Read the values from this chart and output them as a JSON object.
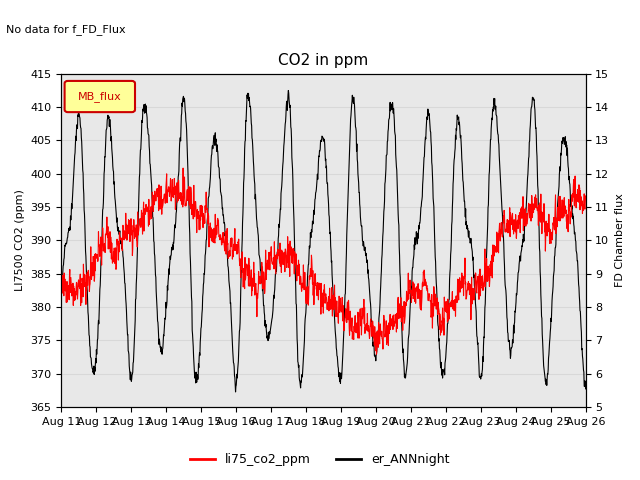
{
  "title": "CO2 in ppm",
  "suptitle": "No data for f_FD_Flux",
  "ylabel_left": "LI7500 CO2 (ppm)",
  "ylabel_right": "FD Chamber flux",
  "ylim_left": [
    365,
    415
  ],
  "ylim_right": [
    5.0,
    15.0
  ],
  "yticks_left": [
    365,
    370,
    375,
    380,
    385,
    390,
    395,
    400,
    405,
    410,
    415
  ],
  "yticks_right": [
    5.0,
    6.0,
    7.0,
    8.0,
    9.0,
    10.0,
    11.0,
    12.0,
    13.0,
    14.0,
    15.0
  ],
  "xtick_labels": [
    "Aug 11",
    "Aug 12",
    "Aug 13",
    "Aug 14",
    "Aug 15",
    "Aug 16",
    "Aug 17",
    "Aug 18",
    "Aug 19",
    "Aug 20",
    "Aug 21",
    "Aug 22",
    "Aug 23",
    "Aug 24",
    "Aug 25",
    "Aug 26"
  ],
  "legend_entries": [
    "li75_co2_ppm",
    "er_ANNnight"
  ],
  "legend_colors": [
    "red",
    "black"
  ],
  "line1_color": "red",
  "line2_color": "black",
  "grid_color": "#d8d8d8",
  "bg_color": "#e8e8e8",
  "legend_box_color": "#ffff99",
  "legend_box_border": "#cc0000",
  "legend_box_label": "MB_flux",
  "n_points": 1500
}
